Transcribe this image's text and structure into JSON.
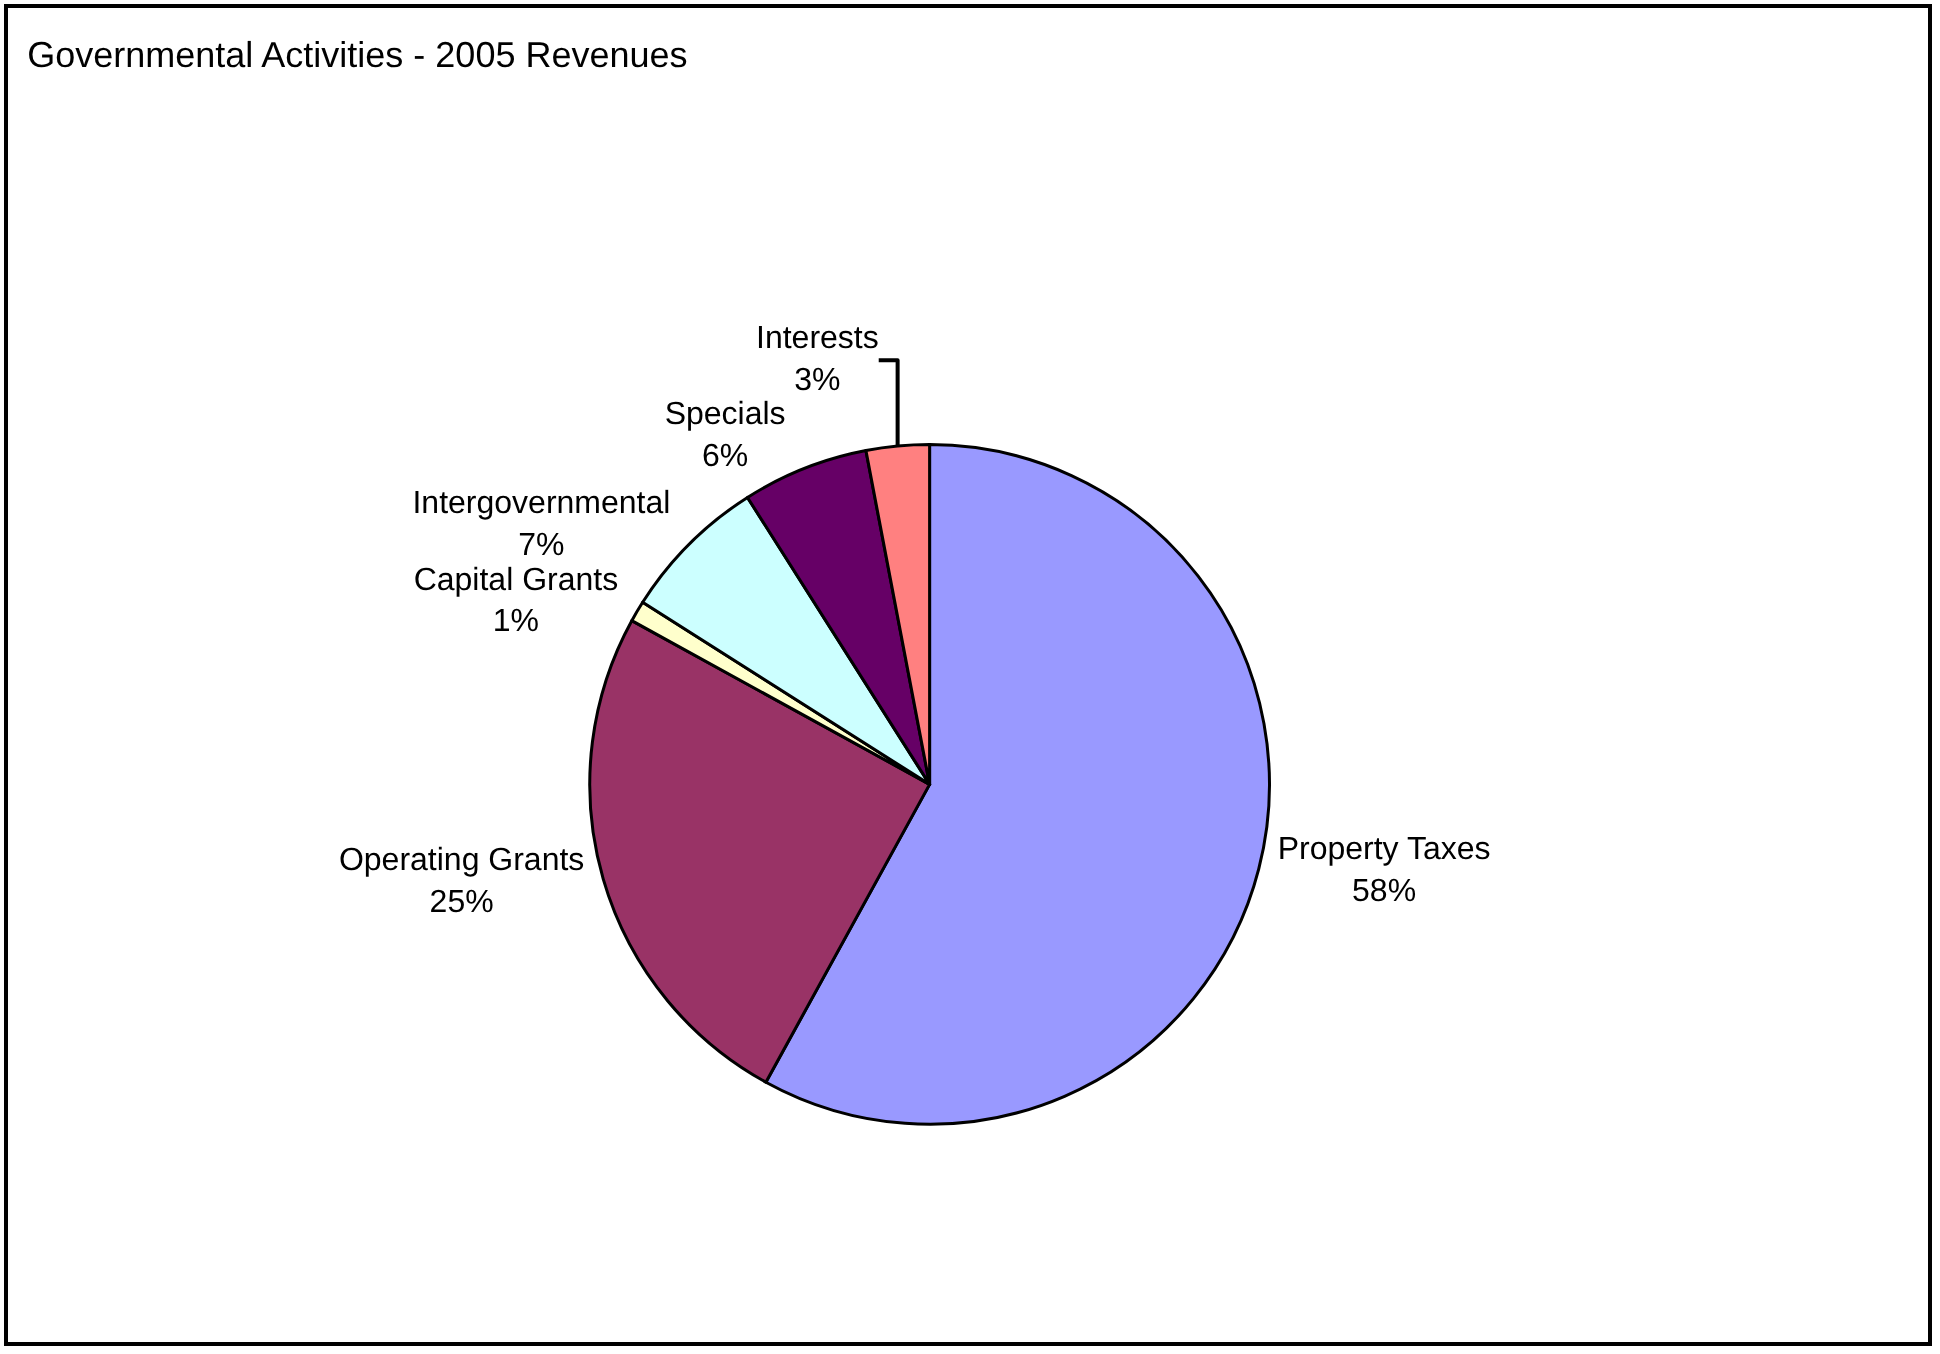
{
  "chart_data": {
    "type": "pie",
    "title": "Governmental Activities - 2005 Revenues",
    "categories": [
      "Property Taxes",
      "Operating Grants",
      "Capital Grants",
      "Intergovernmental",
      "Specials",
      "Interests"
    ],
    "values": [
      58,
      25,
      1,
      7,
      6,
      3
    ],
    "value_labels": [
      "58%",
      "25%",
      "1%",
      "7%",
      "6%",
      "3%"
    ],
    "colors": [
      "#9999ff",
      "#993366",
      "#ffffcc",
      "#ccffff",
      "#660066",
      "#ff8080"
    ],
    "legend": false
  }
}
